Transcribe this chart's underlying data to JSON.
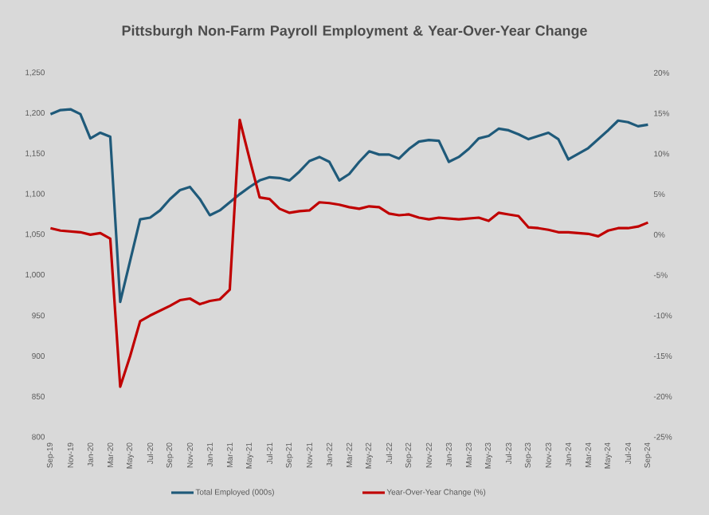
{
  "chart_data": {
    "type": "line",
    "title": "Pittsburgh Non-Farm Payroll Employment & Year-Over-Year Change",
    "categories": [
      "Sep-19",
      null,
      "Nov-19",
      null,
      "Jan-20",
      null,
      "Mar-20",
      null,
      "May-20",
      null,
      "Jul-20",
      null,
      "Sep-20",
      null,
      "Nov-20",
      null,
      "Jan-21",
      null,
      "Mar-21",
      null,
      "May-21",
      null,
      "Jul-21",
      null,
      "Sep-21",
      null,
      "Nov-21",
      null,
      "Jan-22",
      null,
      "Mar-22",
      null,
      "May-22",
      null,
      "Jul-22",
      null,
      "Sep-22",
      null,
      "Nov-22",
      null,
      "Jan-23",
      null,
      "Mar-23",
      null,
      "May-23",
      null,
      "Jul-23",
      null,
      "Sep-23",
      null,
      "Nov-23",
      null,
      "Jan-24",
      null,
      "Mar-24",
      null,
      "May-24",
      null,
      "Jul-24",
      null,
      "Sep-24"
    ],
    "series": [
      {
        "name": "Total Employed (000s)",
        "color": "#1f5a7a",
        "values": [
          1199,
          1204,
          1205,
          1199,
          1169,
          1176,
          1171,
          967,
          1018,
          1069,
          1071,
          1080,
          1094,
          1105,
          1109,
          1094,
          1074,
          1080,
          1090,
          1100,
          1109,
          1117,
          1121,
          1120,
          1117,
          1128,
          1141,
          1146,
          1140,
          1117,
          1125,
          1140,
          1153,
          1149,
          1149,
          1144,
          1156,
          1165,
          1167,
          1166,
          1140,
          1146,
          1156,
          1169,
          1172,
          1181,
          1179,
          1174,
          1168,
          1172,
          1176,
          1168,
          1143,
          1150,
          1157,
          1168,
          1179,
          1191,
          1189,
          1184,
          1186
        ]
      },
      {
        "name": "Year-Over-Year Change (%)",
        "color": "#c00000",
        "axis": "y2",
        "values": [
          0.8,
          0.5,
          0.4,
          0.3,
          0,
          0.2,
          -0.5,
          -18.8,
          -15,
          -10.7,
          -10,
          -9.4,
          -8.8,
          -8.1,
          -7.9,
          -8.6,
          -8.2,
          -8,
          -6.8,
          14.2,
          9.3,
          4.6,
          4.4,
          3.2,
          2.7,
          2.9,
          3,
          4,
          3.9,
          3.7,
          3.4,
          3.2,
          3.5,
          3.4,
          2.6,
          2.4,
          2.5,
          2.1,
          1.9,
          2.1,
          2,
          1.9,
          2,
          2.1,
          1.7,
          2.7,
          2.5,
          2.3,
          0.9,
          0.8,
          0.6,
          0.3,
          0.3,
          0.2,
          0.1,
          -0.2,
          0.5,
          0.8,
          0.8,
          1,
          1.5
        ]
      }
    ],
    "ylim": [
      800,
      1250
    ],
    "yticks": [
      {
        "value": 800,
        "label": "800"
      },
      {
        "value": 850,
        "label": "850"
      },
      {
        "value": 900,
        "label": "900"
      },
      {
        "value": 950,
        "label": "950"
      },
      {
        "value": 1000,
        "label": "1,000"
      },
      {
        "value": 1050,
        "label": "1,050"
      },
      {
        "value": 1100,
        "label": "1,100"
      },
      {
        "value": 1150,
        "label": "1,150"
      },
      {
        "value": 1200,
        "label": "1,200"
      },
      {
        "value": 1250,
        "label": "1,250"
      }
    ],
    "y2lim": [
      -25,
      20
    ],
    "y2ticks": [
      {
        "value": -25,
        "label": "-25%"
      },
      {
        "value": -20,
        "label": "-20%"
      },
      {
        "value": -15,
        "label": "-15%"
      },
      {
        "value": -10,
        "label": "-10%"
      },
      {
        "value": -5,
        "label": "-5%"
      },
      {
        "value": 0,
        "label": "0%"
      },
      {
        "value": 5,
        "label": "5%"
      },
      {
        "value": 10,
        "label": "10%"
      },
      {
        "value": 15,
        "label": "15%"
      },
      {
        "value": 20,
        "label": "20%"
      }
    ],
    "legend": "bottom"
  }
}
